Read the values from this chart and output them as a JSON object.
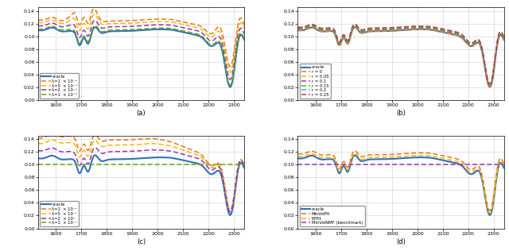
{
  "xlim": [
    1530,
    2340
  ],
  "ylim": [
    0,
    0.145
  ],
  "xticks": [
    1600,
    1700,
    1800,
    1900,
    2000,
    2100,
    2200,
    2300
  ],
  "yticks": [
    0,
    0.02,
    0.04,
    0.06,
    0.08,
    0.1,
    0.12,
    0.14
  ],
  "subplot_labels": [
    "(a)",
    "(b)",
    "(c)",
    "(d)"
  ],
  "colors_a": [
    "#3072B8",
    "#E8751A",
    "#F5B800",
    "#9933BB",
    "#66AA00"
  ],
  "colors_b": [
    "#3072B8",
    "#E8751A",
    "#F5B800",
    "#9933BB",
    "#66AA00",
    "#33BBCC",
    "#CC3333"
  ],
  "colors_c": [
    "#3072B8",
    "#E8751A",
    "#F5B800",
    "#9933BB",
    "#66AA00"
  ],
  "colors_d": [
    "#3072B8",
    "#E8751A",
    "#F5B800",
    "#9933BB"
  ],
  "labels_a": [
    "oracle",
    "λ=1  × 10⁻⁴",
    "λ=5  × 10⁻⁴",
    "λ=2  × 10⁻⁵",
    "λ=1  × 10⁻⁶"
  ],
  "labels_b": [
    "oracle",
    "r = 0",
    "r = 0.05",
    "r = 0.1",
    "r = 0.15",
    "r = 0.2",
    "r = 0.25"
  ],
  "labels_c": [
    "oracle",
    "λ=1  × 10⁻¹",
    "λ=5  × 10⁻¹",
    "λ=2  × 10⁰",
    "λ=1  × 10⁻¹"
  ],
  "labels_d": [
    "oracle",
    "MinVolFit",
    "EPFit",
    "MinVolNMF (benchmark)"
  ]
}
